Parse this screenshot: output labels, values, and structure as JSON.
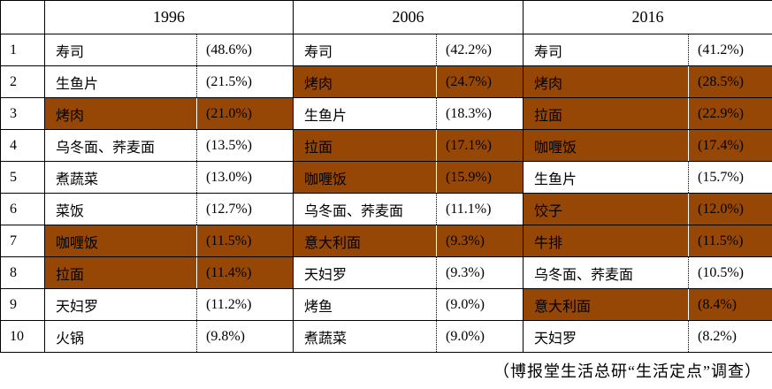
{
  "chart_data": {
    "type": "table",
    "title": "",
    "description_colors": {
      "highlight_fill": "#964705",
      "border": "#000000",
      "background": "#ffffff",
      "text": "#000000"
    },
    "ranks": [
      "1",
      "2",
      "3",
      "4",
      "5",
      "6",
      "7",
      "8",
      "9",
      "10"
    ],
    "years": [
      {
        "label": "1996",
        "items": [
          {
            "name": "寿司",
            "pct": 48.6,
            "display": "(48.6%)",
            "highlight": false
          },
          {
            "name": "生鱼片",
            "pct": 21.5,
            "display": "(21.5%)",
            "highlight": false
          },
          {
            "name": "烤肉",
            "pct": 21.0,
            "display": "(21.0%)",
            "highlight": true
          },
          {
            "name": "乌冬面、荞麦面",
            "pct": 13.5,
            "display": "(13.5%)",
            "highlight": false
          },
          {
            "name": "煮蔬菜",
            "pct": 13.0,
            "display": "(13.0%)",
            "highlight": false
          },
          {
            "name": "菜饭",
            "pct": 12.7,
            "display": "(12.7%)",
            "highlight": false
          },
          {
            "name": "咖喱饭",
            "pct": 11.5,
            "display": "(11.5%)",
            "highlight": true
          },
          {
            "name": "拉面",
            "pct": 11.4,
            "display": "(11.4%)",
            "highlight": true
          },
          {
            "name": "天妇罗",
            "pct": 11.2,
            "display": "(11.2%)",
            "highlight": false
          },
          {
            "name": "火锅",
            "pct": 9.8,
            "display": "(9.8%)",
            "highlight": false
          }
        ]
      },
      {
        "label": "2006",
        "items": [
          {
            "name": "寿司",
            "pct": 42.2,
            "display": "(42.2%)",
            "highlight": false
          },
          {
            "name": "烤肉",
            "pct": 24.7,
            "display": "(24.7%)",
            "highlight": true
          },
          {
            "name": "生鱼片",
            "pct": 18.3,
            "display": "(18.3%)",
            "highlight": false
          },
          {
            "name": "拉面",
            "pct": 17.1,
            "display": "(17.1%)",
            "highlight": true
          },
          {
            "name": "咖喱饭",
            "pct": 15.9,
            "display": "(15.9%)",
            "highlight": true
          },
          {
            "name": "乌冬面、荞麦面",
            "pct": 11.1,
            "display": "(11.1%)",
            "highlight": false
          },
          {
            "name": "意大利面",
            "pct": 9.3,
            "display": "(9.3%)",
            "highlight": true
          },
          {
            "name": "天妇罗",
            "pct": 9.3,
            "display": "(9.3%)",
            "highlight": false
          },
          {
            "name": "烤鱼",
            "pct": 9.0,
            "display": "(9.0%)",
            "highlight": false
          },
          {
            "name": "煮蔬菜",
            "pct": 9.0,
            "display": "(9.0%)",
            "highlight": false
          }
        ]
      },
      {
        "label": "2016",
        "items": [
          {
            "name": "寿司",
            "pct": 41.2,
            "display": "(41.2%)",
            "highlight": false
          },
          {
            "name": "烤肉",
            "pct": 28.5,
            "display": "(28.5%)",
            "highlight": true
          },
          {
            "name": "拉面",
            "pct": 22.9,
            "display": "(22.9%)",
            "highlight": true
          },
          {
            "name": "咖喱饭",
            "pct": 17.4,
            "display": "(17.4%)",
            "highlight": true
          },
          {
            "name": "生鱼片",
            "pct": 15.7,
            "display": "(15.7%)",
            "highlight": false
          },
          {
            "name": "饺子",
            "pct": 12.0,
            "display": "(12.0%)",
            "highlight": true
          },
          {
            "name": "牛排",
            "pct": 11.5,
            "display": "(11.5%)",
            "highlight": true
          },
          {
            "name": "乌冬面、荞麦面",
            "pct": 10.5,
            "display": "(10.5%)",
            "highlight": false
          },
          {
            "name": "意大利面",
            "pct": 8.4,
            "display": "(8.4%)",
            "highlight": true
          },
          {
            "name": "天妇罗",
            "pct": 8.2,
            "display": "(8.2%)",
            "highlight": false
          }
        ]
      }
    ],
    "source_note": "（博报堂生活总研“生活定点”调查）"
  },
  "colors": {
    "highlight": "#964705",
    "border": "#000000",
    "background": "#ffffff",
    "text": "#000000"
  }
}
